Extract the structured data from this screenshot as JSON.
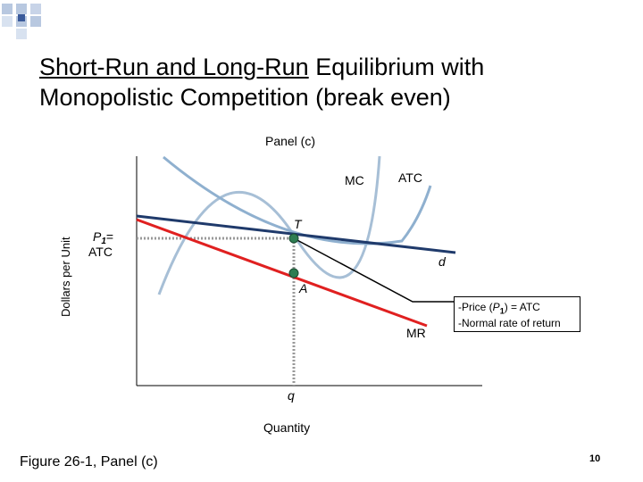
{
  "slide": {
    "title_line1_underlined": "Short-Run and Long-Run",
    "title_line1_rest": " Equilibrium with",
    "title_line2": "Monopolistic Competition (break even)",
    "panel_label": "Panel (c)",
    "footer_caption": "Figure 26-1, Panel (c)",
    "page_number": "10"
  },
  "diagram": {
    "y_axis_label": "Dollars per Unit",
    "x_axis_label": "Quantity",
    "curves": {
      "mc": "MC",
      "atc": "ATC",
      "demand": "d",
      "marginal_revenue": "MR"
    },
    "points": {
      "tangency": "T",
      "mr_equals_mc": "A"
    },
    "price_label_symbol": "P",
    "price_label_subscript": "1",
    "price_label_suffix": "=",
    "price_label_line2": "ATC",
    "quantity_label": "q",
    "note_line1_prefix": "-Price (",
    "note_line1_symbol": "P",
    "note_line1_subscript": "1",
    "note_line1_suffix": ") = ATC",
    "note_line2": "-Normal rate of return"
  },
  "colors": {
    "demand": "#1f3a6b",
    "marginal_revenue": "#e02020",
    "mc": "#8fb0cf",
    "atc": "#a7bfd6",
    "point": "#2e7d52",
    "guide": "#999999",
    "deco_blue": "#b8c8e0",
    "deco_dark": "#3a5a9a"
  }
}
